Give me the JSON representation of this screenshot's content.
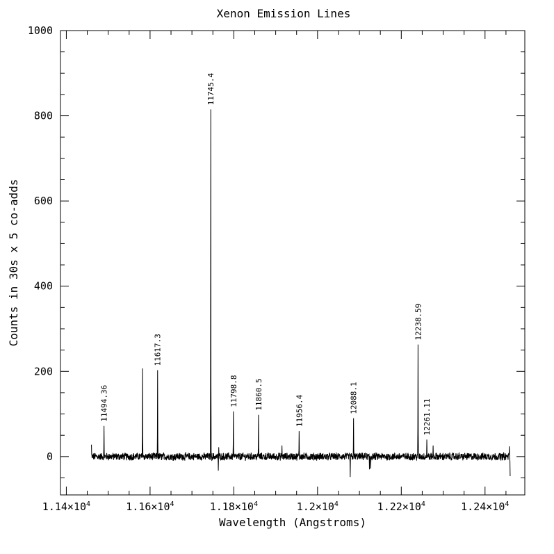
{
  "chart_data": {
    "type": "line",
    "title": "Xenon Emission Lines",
    "xlabel": "Wavelength (Angstroms)",
    "ylabel": "Counts in 30s x 5 co-adds",
    "xlim": [
      11386,
      12495
    ],
    "ylim": [
      -90,
      1000
    ],
    "x_ticks": [
      {
        "value": 11400,
        "mantissa": "1.14",
        "exponent": "4"
      },
      {
        "value": 11600,
        "mantissa": "1.16",
        "exponent": "4"
      },
      {
        "value": 11800,
        "mantissa": "1.18",
        "exponent": "4"
      },
      {
        "value": 12000,
        "mantissa": "1.2",
        "exponent": "4"
      },
      {
        "value": 12200,
        "mantissa": "1.22",
        "exponent": "4"
      },
      {
        "value": 12400,
        "mantissa": "1.24",
        "exponent": "4"
      }
    ],
    "x_tick_base": "10",
    "y_ticks": [
      0,
      200,
      400,
      600,
      800,
      1000
    ],
    "spectrum_range": [
      11460,
      12460
    ],
    "noise_amplitude": 8,
    "peaks": [
      {
        "x": 11460,
        "y": 28,
        "label": ""
      },
      {
        "x": 11490,
        "y": 72,
        "label": "11494.36"
      },
      {
        "x": 11582,
        "y": 207,
        "label": ""
      },
      {
        "x": 11618,
        "y": 203,
        "label": "11617.3"
      },
      {
        "x": 11745,
        "y": 815,
        "label": "11745.4"
      },
      {
        "x": 11764,
        "y": 22,
        "label": ""
      },
      {
        "x": 11799,
        "y": 106,
        "label": "11798.8"
      },
      {
        "x": 11859,
        "y": 98,
        "label": "11860.5"
      },
      {
        "x": 11915,
        "y": 26,
        "label": ""
      },
      {
        "x": 11956,
        "y": 60,
        "label": "11956.4"
      },
      {
        "x": 12086,
        "y": 90,
        "label": "12088.1"
      },
      {
        "x": 12240,
        "y": 263,
        "label": "12238.59"
      },
      {
        "x": 12261,
        "y": 40,
        "label": "12261.11"
      },
      {
        "x": 12276,
        "y": 26,
        "label": ""
      },
      {
        "x": 12458,
        "y": 24,
        "label": ""
      }
    ],
    "dips": [
      {
        "x": 11763,
        "y": -33
      },
      {
        "x": 12078,
        "y": -48
      },
      {
        "x": 12124,
        "y": -30
      },
      {
        "x": 12127,
        "y": -28
      },
      {
        "x": 12460,
        "y": -46
      }
    ],
    "grid": false,
    "legend": "none"
  }
}
